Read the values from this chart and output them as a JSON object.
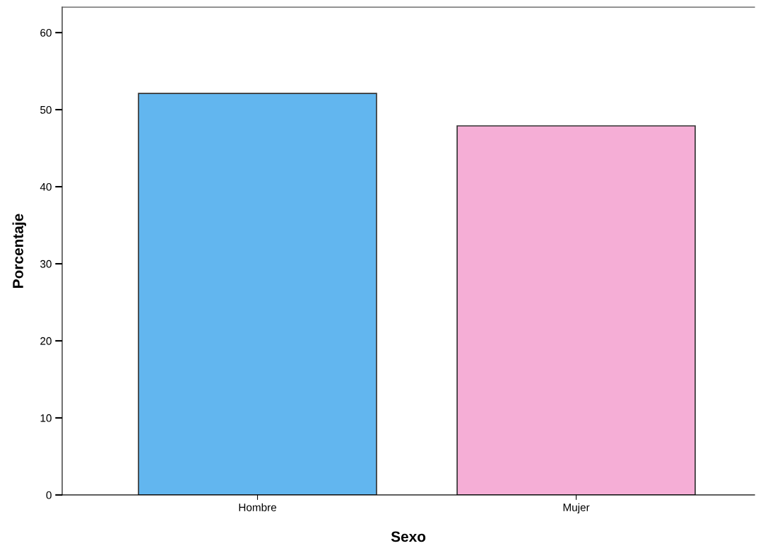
{
  "chart_data": {
    "type": "bar",
    "xlabel": "Sexo",
    "ylabel": "Porcentaje",
    "categories": [
      "Hombre",
      "Mujer"
    ],
    "values": [
      52.1,
      47.9
    ],
    "colors": [
      "#62b6ef",
      "#f5aed6"
    ],
    "ylim": [
      0,
      63.3
    ],
    "yticks": [
      0,
      10,
      20,
      30,
      40,
      50,
      60
    ],
    "grid": false
  }
}
